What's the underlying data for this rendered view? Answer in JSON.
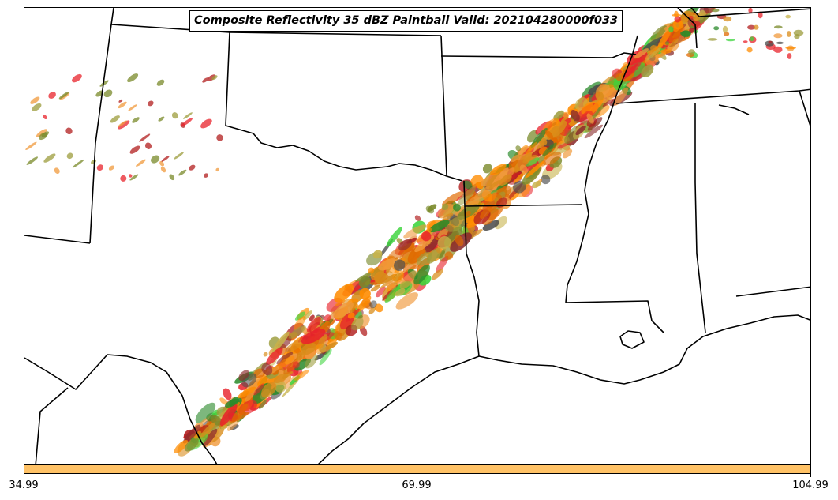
{
  "title": "Composite Reflectivity 35 dBZ Paintball Valid: 202104280000f033",
  "colorbar": {
    "color": "#ffc266",
    "ticks": [
      "34.99",
      "69.99",
      "104.99"
    ]
  },
  "paint_colors": [
    "#e8232b",
    "#b11d1d",
    "#ff8c00",
    "#e06a00",
    "#f09a3c",
    "#8b2d2d",
    "#7a8a2a",
    "#9c9c3c",
    "#c7b24a",
    "#3cd43c",
    "#2a8a2a",
    "#4a4a4a",
    "#d98c1a"
  ],
  "boundary_color": "#000000"
}
